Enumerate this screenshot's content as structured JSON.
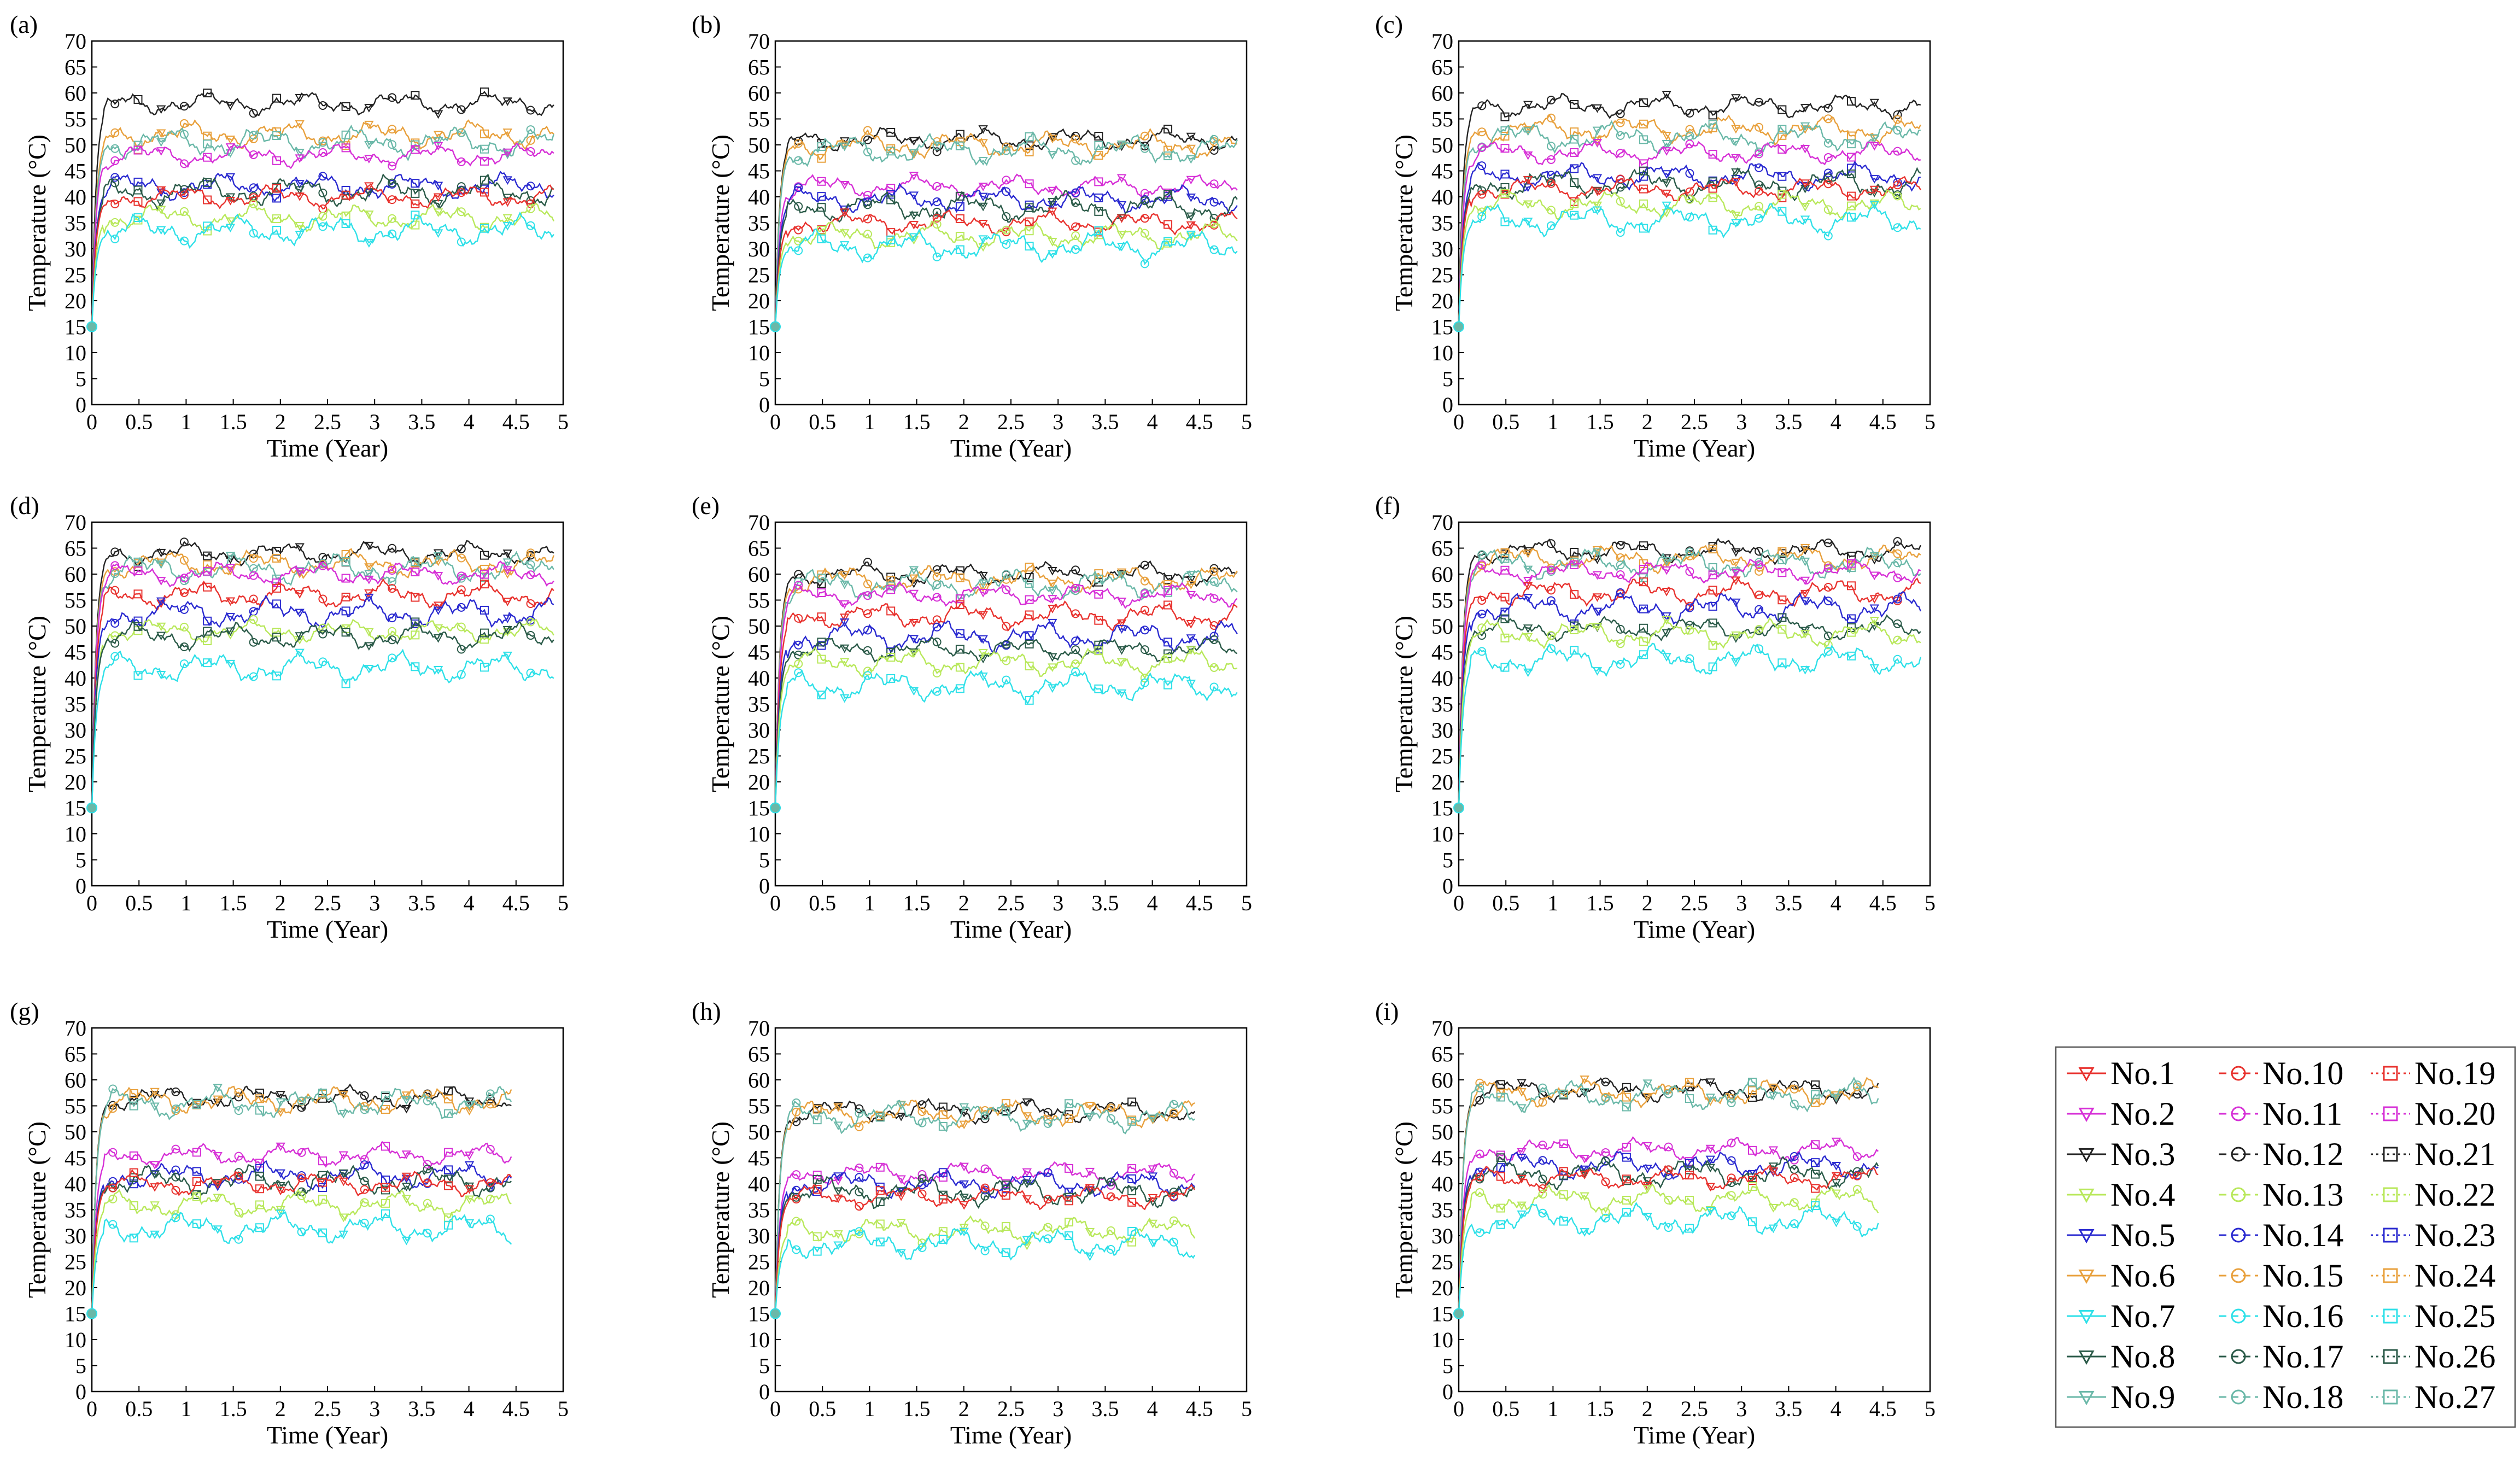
{
  "figure": {
    "xlabel": "Time (Year)",
    "ylabel": "Temperature (°C)",
    "x_ticks": [
      "0",
      "0.5",
      "1",
      "1.5",
      "2",
      "2.5",
      "3",
      "3.5",
      "4",
      "4.5",
      "5"
    ],
    "y_ticks": [
      "0",
      "5",
      "10",
      "15",
      "20",
      "25",
      "30",
      "35",
      "40",
      "45",
      "50",
      "55",
      "60",
      "65",
      "70"
    ]
  },
  "legend": {
    "placement": "bottom-right",
    "entries": [
      {
        "label": "No.1",
        "color": "#e8322e",
        "marker": "triangle-down"
      },
      {
        "label": "No.2",
        "color": "#d62fd6",
        "marker": "triangle-down"
      },
      {
        "label": "No.3",
        "color": "#222222",
        "marker": "triangle-down"
      },
      {
        "label": "No.4",
        "color": "#b8e85a",
        "marker": "triangle-down"
      },
      {
        "label": "No.5",
        "color": "#2a2ad0",
        "marker": "triangle-down"
      },
      {
        "label": "No.6",
        "color": "#e8a03c",
        "marker": "triangle-down"
      },
      {
        "label": "No.7",
        "color": "#2ee0e8",
        "marker": "triangle-down"
      },
      {
        "label": "No.8",
        "color": "#2a5a48",
        "marker": "triangle-down"
      },
      {
        "label": "No.9",
        "color": "#6ab8a8",
        "marker": "triangle-down"
      },
      {
        "label": "No.10",
        "color": "#e8322e",
        "marker": "circle"
      },
      {
        "label": "No.11",
        "color": "#d62fd6",
        "marker": "circle"
      },
      {
        "label": "No.12",
        "color": "#222222",
        "marker": "circle"
      },
      {
        "label": "No.13",
        "color": "#b8e85a",
        "marker": "circle"
      },
      {
        "label": "No.14",
        "color": "#2a2ad0",
        "marker": "circle"
      },
      {
        "label": "No.15",
        "color": "#e8a03c",
        "marker": "circle"
      },
      {
        "label": "No.16",
        "color": "#2ee0e8",
        "marker": "circle"
      },
      {
        "label": "No.17",
        "color": "#2a5a48",
        "marker": "circle"
      },
      {
        "label": "No.18",
        "color": "#6ab8a8",
        "marker": "circle"
      },
      {
        "label": "No.19",
        "color": "#e8322e",
        "marker": "square"
      },
      {
        "label": "No.20",
        "color": "#d62fd6",
        "marker": "square"
      },
      {
        "label": "No.21",
        "color": "#222222",
        "marker": "square"
      },
      {
        "label": "No.22",
        "color": "#b8e85a",
        "marker": "square"
      },
      {
        "label": "No.23",
        "color": "#2a2ad0",
        "marker": "square"
      },
      {
        "label": "No.24",
        "color": "#e8a03c",
        "marker": "square"
      },
      {
        "label": "No.25",
        "color": "#2ee0e8",
        "marker": "square"
      },
      {
        "label": "No.26",
        "color": "#2a5a48",
        "marker": "square"
      },
      {
        "label": "No.27",
        "color": "#6ab8a8",
        "marker": "square"
      }
    ]
  },
  "chart_data": [
    {
      "panel": "(a)",
      "type": "line",
      "xlabel": "Time (Year)",
      "ylabel": "Temperature (°C)",
      "xlim": [
        0,
        5
      ],
      "ylim": [
        0,
        70
      ],
      "x_end": 4.9,
      "initial": 15,
      "series": [
        {
          "name": "No.3",
          "color": "#222222",
          "level": 58.0
        },
        {
          "name": "No.6",
          "color": "#e8a03c",
          "level": 52.0
        },
        {
          "name": "No.9",
          "color": "#6ab8a8",
          "level": 50.5
        },
        {
          "name": "No.2",
          "color": "#d62fd6",
          "level": 48.0
        },
        {
          "name": "No.5",
          "color": "#2a2ad0",
          "level": 42.0
        },
        {
          "name": "No.8",
          "color": "#2a5a48",
          "level": 41.0
        },
        {
          "name": "No.1",
          "color": "#e8322e",
          "level": 40.0
        },
        {
          "name": "No.4",
          "color": "#b8e85a",
          "level": 36.0
        },
        {
          "name": "No.7",
          "color": "#2ee0e8",
          "level": 33.5
        }
      ]
    },
    {
      "panel": "(b)",
      "type": "line",
      "xlabel": "Time (Year)",
      "ylabel": "Temperature (°C)",
      "xlim": [
        0,
        5
      ],
      "ylim": [
        0,
        70
      ],
      "x_end": 4.9,
      "initial": 15,
      "series": [
        {
          "name": "No.3",
          "color": "#222222",
          "level": 51.0
        },
        {
          "name": "No.6",
          "color": "#e8a03c",
          "level": 50.0
        },
        {
          "name": "No.9",
          "color": "#6ab8a8",
          "level": 49.0
        },
        {
          "name": "No.2",
          "color": "#d62fd6",
          "level": 42.0
        },
        {
          "name": "No.5",
          "color": "#2a2ad0",
          "level": 39.5
        },
        {
          "name": "No.8",
          "color": "#2a5a48",
          "level": 38.0
        },
        {
          "name": "No.1",
          "color": "#e8322e",
          "level": 35.0
        },
        {
          "name": "No.4",
          "color": "#b8e85a",
          "level": 32.5
        },
        {
          "name": "No.7",
          "color": "#2ee0e8",
          "level": 30.5
        }
      ]
    },
    {
      "panel": "(c)",
      "type": "line",
      "xlabel": "Time (Year)",
      "ylabel": "Temperature (°C)",
      "xlim": [
        0,
        5
      ],
      "ylim": [
        0,
        70
      ],
      "x_end": 4.9,
      "initial": 15,
      "series": [
        {
          "name": "No.3",
          "color": "#222222",
          "level": 57.5
        },
        {
          "name": "No.6",
          "color": "#e8a03c",
          "level": 53.0
        },
        {
          "name": "No.9",
          "color": "#6ab8a8",
          "level": 51.5
        },
        {
          "name": "No.2",
          "color": "#d62fd6",
          "level": 48.5
        },
        {
          "name": "No.5",
          "color": "#2a2ad0",
          "level": 44.0
        },
        {
          "name": "No.8",
          "color": "#2a5a48",
          "level": 42.5
        },
        {
          "name": "No.1",
          "color": "#e8322e",
          "level": 41.5
        },
        {
          "name": "No.4",
          "color": "#b8e85a",
          "level": 38.5
        },
        {
          "name": "No.7",
          "color": "#2ee0e8",
          "level": 35.5
        }
      ]
    },
    {
      "panel": "(d)",
      "type": "line",
      "xlabel": "Time (Year)",
      "ylabel": "Temperature (°C)",
      "xlim": [
        0,
        5
      ],
      "ylim": [
        0,
        70
      ],
      "x_end": 4.9,
      "initial": 15,
      "series": [
        {
          "name": "No.3",
          "color": "#222222",
          "level": 64.0
        },
        {
          "name": "No.6",
          "color": "#e8a03c",
          "level": 62.0
        },
        {
          "name": "No.9",
          "color": "#6ab8a8",
          "level": 61.0
        },
        {
          "name": "No.2",
          "color": "#d62fd6",
          "level": 60.0
        },
        {
          "name": "No.1",
          "color": "#e8322e",
          "level": 56.0
        },
        {
          "name": "No.5",
          "color": "#2a2ad0",
          "level": 52.5
        },
        {
          "name": "No.4",
          "color": "#b8e85a",
          "level": 49.0
        },
        {
          "name": "No.8",
          "color": "#2a5a48",
          "level": 48.0
        },
        {
          "name": "No.7",
          "color": "#2ee0e8",
          "level": 42.0
        }
      ]
    },
    {
      "panel": "(e)",
      "type": "line",
      "xlabel": "Time (Year)",
      "ylabel": "Temperature (°C)",
      "xlim": [
        0,
        5
      ],
      "ylim": [
        0,
        70
      ],
      "x_end": 4.9,
      "initial": 15,
      "series": [
        {
          "name": "No.3",
          "color": "#222222",
          "level": 60.0
        },
        {
          "name": "No.6",
          "color": "#e8a03c",
          "level": 59.0
        },
        {
          "name": "No.9",
          "color": "#6ab8a8",
          "level": 58.0
        },
        {
          "name": "No.2",
          "color": "#d62fd6",
          "level": 56.0
        },
        {
          "name": "No.1",
          "color": "#e8322e",
          "level": 52.0
        },
        {
          "name": "No.5",
          "color": "#2a2ad0",
          "level": 48.0
        },
        {
          "name": "No.8",
          "color": "#2a5a48",
          "level": 45.5
        },
        {
          "name": "No.4",
          "color": "#b8e85a",
          "level": 43.0
        },
        {
          "name": "No.7",
          "color": "#2ee0e8",
          "level": 38.5
        }
      ]
    },
    {
      "panel": "(f)",
      "type": "line",
      "xlabel": "Time (Year)",
      "ylabel": "Temperature (°C)",
      "xlim": [
        0,
        5
      ],
      "ylim": [
        0,
        70
      ],
      "x_end": 4.9,
      "initial": 15,
      "series": [
        {
          "name": "No.3",
          "color": "#222222",
          "level": 64.5
        },
        {
          "name": "No.6",
          "color": "#e8a03c",
          "level": 63.0
        },
        {
          "name": "No.9",
          "color": "#6ab8a8",
          "level": 62.0
        },
        {
          "name": "No.2",
          "color": "#d62fd6",
          "level": 60.5
        },
        {
          "name": "No.1",
          "color": "#e8322e",
          "level": 56.5
        },
        {
          "name": "No.5",
          "color": "#2a2ad0",
          "level": 53.5
        },
        {
          "name": "No.8",
          "color": "#2a5a48",
          "level": 49.5
        },
        {
          "name": "No.4",
          "color": "#b8e85a",
          "level": 48.5
        },
        {
          "name": "No.7",
          "color": "#2ee0e8",
          "level": 43.5
        }
      ]
    },
    {
      "panel": "(g)",
      "type": "line",
      "xlabel": "Time (Year)",
      "ylabel": "Temperature (°C)",
      "xlim": [
        0,
        5
      ],
      "ylim": [
        0,
        70
      ],
      "x_end": 4.45,
      "initial": 15,
      "series": [
        {
          "name": "No.3",
          "color": "#222222",
          "level": 56.5
        },
        {
          "name": "No.6",
          "color": "#e8a03c",
          "level": 56.0
        },
        {
          "name": "No.9",
          "color": "#6ab8a8",
          "level": 55.5
        },
        {
          "name": "No.2",
          "color": "#d62fd6",
          "level": 45.5
        },
        {
          "name": "No.5",
          "color": "#2a2ad0",
          "level": 41.5
        },
        {
          "name": "No.8",
          "color": "#2a5a48",
          "level": 40.5
        },
        {
          "name": "No.1",
          "color": "#e8322e",
          "level": 40.0
        },
        {
          "name": "No.4",
          "color": "#b8e85a",
          "level": 36.0
        },
        {
          "name": "No.7",
          "color": "#2ee0e8",
          "level": 31.5
        }
      ]
    },
    {
      "panel": "(h)",
      "type": "line",
      "xlabel": "Time (Year)",
      "ylabel": "Temperature (°C)",
      "xlim": [
        0,
        5
      ],
      "ylim": [
        0,
        70
      ],
      "x_end": 4.45,
      "initial": 15,
      "series": [
        {
          "name": "No.3",
          "color": "#222222",
          "level": 54.0
        },
        {
          "name": "No.6",
          "color": "#e8a03c",
          "level": 53.5
        },
        {
          "name": "No.9",
          "color": "#6ab8a8",
          "level": 53.0
        },
        {
          "name": "No.2",
          "color": "#d62fd6",
          "level": 42.0
        },
        {
          "name": "No.5",
          "color": "#2a2ad0",
          "level": 40.0
        },
        {
          "name": "No.8",
          "color": "#2a5a48",
          "level": 38.5
        },
        {
          "name": "No.1",
          "color": "#e8322e",
          "level": 37.5
        },
        {
          "name": "No.4",
          "color": "#b8e85a",
          "level": 31.0
        },
        {
          "name": "No.7",
          "color": "#2ee0e8",
          "level": 28.5
        }
      ]
    },
    {
      "panel": "(i)",
      "type": "line",
      "xlabel": "Time (Year)",
      "ylabel": "Temperature (°C)",
      "xlim": [
        0,
        5
      ],
      "ylim": [
        0,
        70
      ],
      "x_end": 4.45,
      "initial": 15,
      "series": [
        {
          "name": "No.3",
          "color": "#222222",
          "level": 58.0
        },
        {
          "name": "No.6",
          "color": "#e8a03c",
          "level": 57.5
        },
        {
          "name": "No.9",
          "color": "#6ab8a8",
          "level": 57.0
        },
        {
          "name": "No.2",
          "color": "#d62fd6",
          "level": 46.5
        },
        {
          "name": "No.5",
          "color": "#2a2ad0",
          "level": 43.5
        },
        {
          "name": "No.8",
          "color": "#2a5a48",
          "level": 42.0
        },
        {
          "name": "No.1",
          "color": "#e8322e",
          "level": 41.0
        },
        {
          "name": "No.4",
          "color": "#b8e85a",
          "level": 37.0
        },
        {
          "name": "No.7",
          "color": "#2ee0e8",
          "level": 33.0
        }
      ]
    }
  ]
}
